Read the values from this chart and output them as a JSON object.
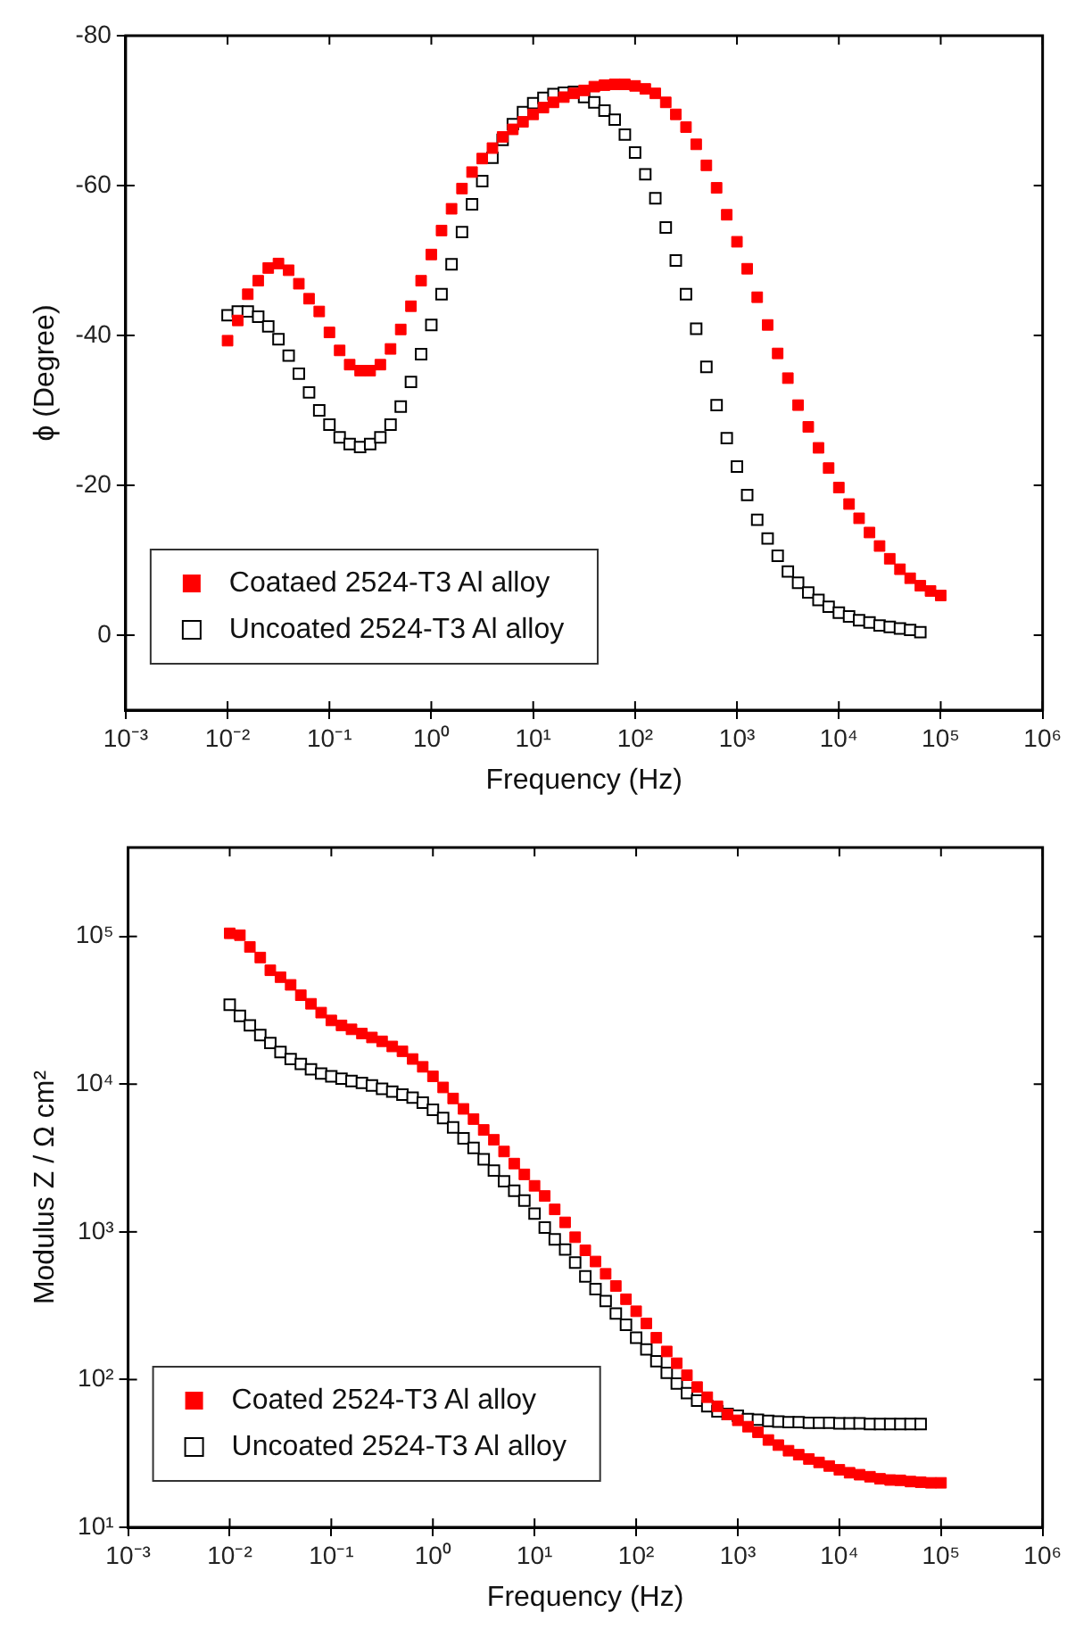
{
  "chart_data": [
    {
      "type": "scatter",
      "xlabel": "Frequency (Hz)",
      "ylabel": "ϕ (Degree)",
      "log": "x",
      "marker": "square",
      "legend": "bottom left",
      "grid": false,
      "xlim": [
        0.001,
        1000000
      ],
      "xticks": [
        {
          "value": 0.001,
          "label": "10⁻³"
        },
        {
          "value": 0.01,
          "label": "10⁻²"
        },
        {
          "value": 0.1,
          "label": "10⁻¹"
        },
        {
          "value": 1,
          "label": "10⁰"
        },
        {
          "value": 10,
          "label": "10¹"
        },
        {
          "value": 100,
          "label": "10²"
        },
        {
          "value": 1000,
          "label": "10³"
        },
        {
          "value": 10000,
          "label": "10⁴"
        },
        {
          "value": 100000,
          "label": "10⁵"
        },
        {
          "value": 1000000,
          "label": "10⁶"
        }
      ],
      "ylim": [
        10,
        -80
      ],
      "yticks": [
        -80,
        -60,
        -40,
        -20,
        0
      ],
      "series": [
        {
          "name": "Coataed 2524-T3 Al alloy",
          "color": "#ff0000",
          "x": [
            0.01,
            0.0126,
            0.0158,
            0.02,
            0.0251,
            0.0316,
            0.0398,
            0.0501,
            0.0631,
            0.0794,
            0.1,
            0.126,
            0.158,
            0.2,
            0.251,
            0.316,
            0.398,
            0.501,
            0.631,
            0.794,
            1,
            1.26,
            1.58,
            2,
            2.51,
            3.16,
            3.98,
            5.01,
            6.31,
            7.94,
            10,
            12.6,
            15.8,
            20,
            25.1,
            31.6,
            39.8,
            50.1,
            63.1,
            79.4,
            100,
            126,
            158,
            200,
            251,
            316,
            398,
            501,
            631,
            794,
            1000,
            1260,
            1580,
            2000,
            2510,
            3160,
            3980,
            5010,
            6310,
            7940,
            10000,
            12600,
            15800,
            20000,
            25100,
            31600,
            39800,
            50100,
            63100,
            79400,
            100000
          ],
          "values": [
            -39.3,
            -42,
            -45.5,
            -47.3,
            -49,
            -49.6,
            -48.7,
            -46.9,
            -44.9,
            -43.2,
            -40.4,
            -38,
            -36.1,
            -35.3,
            -35.3,
            -36.1,
            -38.2,
            -40.8,
            -43.9,
            -47.3,
            -50.8,
            -54,
            -56.9,
            -59.6,
            -61.8,
            -63.6,
            -65,
            -66.5,
            -67.5,
            -68.5,
            -69.5,
            -70.4,
            -71.1,
            -71.8,
            -72.3,
            -72.7,
            -73.2,
            -73.4,
            -73.5,
            -73.5,
            -73.3,
            -72.9,
            -72.3,
            -71.1,
            -69.5,
            -67.8,
            -65.5,
            -62.7,
            -59.7,
            -56.1,
            -52.5,
            -48.9,
            -45.1,
            -41.4,
            -37.6,
            -34.3,
            -30.7,
            -27.8,
            -25,
            -22.3,
            -19.7,
            -17.5,
            -15.6,
            -13.7,
            -11.9,
            -10.2,
            -8.8,
            -7.6,
            -6.6,
            -5.9,
            -5.3
          ]
        },
        {
          "name": "Uncoated 2524-T3 Al alloy",
          "color": "#000000",
          "x": [
            0.01,
            0.0126,
            0.0158,
            0.02,
            0.0251,
            0.0316,
            0.0398,
            0.0501,
            0.0631,
            0.0794,
            0.1,
            0.126,
            0.158,
            0.2,
            0.251,
            0.316,
            0.398,
            0.501,
            0.631,
            0.794,
            1,
            1.26,
            1.58,
            2,
            2.51,
            3.16,
            3.98,
            5.01,
            6.31,
            7.94,
            10,
            12.6,
            15.8,
            20,
            25.1,
            31.6,
            39.8,
            50.1,
            63.1,
            79.4,
            100,
            126,
            158,
            200,
            251,
            316,
            398,
            501,
            631,
            794,
            1000,
            1260,
            1580,
            2000,
            2510,
            3160,
            3980,
            5010,
            6310,
            7940,
            10000,
            12600,
            15800,
            20000,
            25100,
            31600,
            39800,
            50100,
            63100
          ],
          "values": [
            -42.7,
            -43.2,
            -43.2,
            -42.5,
            -41.2,
            -39.5,
            -37.3,
            -34.9,
            -32.4,
            -30,
            -28.1,
            -26.4,
            -25.5,
            -25.1,
            -25.5,
            -26.4,
            -28.1,
            -30.5,
            -33.8,
            -37.5,
            -41.4,
            -45.5,
            -49.5,
            -53.8,
            -57.5,
            -60.6,
            -63.7,
            -66.1,
            -68.2,
            -69.8,
            -71,
            -71.7,
            -72.2,
            -72.4,
            -72.5,
            -71.8,
            -71.1,
            -70,
            -68.8,
            -66.8,
            -64.4,
            -61.5,
            -58.3,
            -54.4,
            -50,
            -45.5,
            -40.9,
            -35.8,
            -30.7,
            -26.3,
            -22.5,
            -18.7,
            -15.4,
            -12.9,
            -10.6,
            -8.5,
            -7,
            -5.7,
            -4.7,
            -3.8,
            -3,
            -2.5,
            -2,
            -1.7,
            -1.3,
            -1.1,
            -0.9,
            -0.7,
            -0.4
          ]
        }
      ]
    },
    {
      "type": "scatter",
      "xlabel": "Frequency (Hz)",
      "ylabel": "Modulus Z / Ω cm²",
      "log": "xy",
      "marker": "square",
      "legend": "bottom left",
      "grid": false,
      "xlim": [
        0.001,
        1000000
      ],
      "xticks": [
        {
          "value": 0.001,
          "label": "10⁻³"
        },
        {
          "value": 0.01,
          "label": "10⁻²"
        },
        {
          "value": 0.1,
          "label": "10⁻¹"
        },
        {
          "value": 1,
          "label": "10⁰"
        },
        {
          "value": 10,
          "label": "10¹"
        },
        {
          "value": 100,
          "label": "10²"
        },
        {
          "value": 1000,
          "label": "10³"
        },
        {
          "value": 10000,
          "label": "10⁴"
        },
        {
          "value": 100000,
          "label": "10⁵"
        },
        {
          "value": 1000000,
          "label": "10⁶"
        }
      ],
      "ylim": [
        10,
        400000
      ],
      "yticks": [
        {
          "value": 10,
          "label": "10¹"
        },
        {
          "value": 100,
          "label": "10²"
        },
        {
          "value": 1000,
          "label": "10³"
        },
        {
          "value": 10000,
          "label": "10⁴"
        },
        {
          "value": 100000,
          "label": "10⁵"
        }
      ],
      "series": [
        {
          "name": "Coated 2524-T3 Al alloy",
          "color": "#ff0000",
          "x": [
            0.01,
            0.0126,
            0.0158,
            0.02,
            0.0251,
            0.0316,
            0.0398,
            0.0501,
            0.0631,
            0.0794,
            0.1,
            0.126,
            0.158,
            0.2,
            0.251,
            0.316,
            0.398,
            0.501,
            0.631,
            0.794,
            1,
            1.26,
            1.58,
            2,
            2.51,
            3.16,
            3.98,
            5.01,
            6.31,
            7.94,
            10,
            12.6,
            15.8,
            20,
            25.1,
            31.6,
            39.8,
            50.1,
            63.1,
            79.4,
            100,
            126,
            158,
            200,
            251,
            316,
            398,
            501,
            631,
            794,
            1000,
            1260,
            1580,
            2000,
            2510,
            3160,
            3980,
            5010,
            6310,
            7940,
            10000,
            12600,
            15800,
            20000,
            25100,
            31600,
            39800,
            50100,
            63100,
            79400,
            100000
          ],
          "values": [
            105000,
            102000,
            85000,
            72000,
            59000,
            53000,
            47000,
            40000,
            35000,
            30500,
            27000,
            25000,
            23500,
            22000,
            20700,
            19500,
            18000,
            16700,
            14800,
            13100,
            11300,
            9500,
            8000,
            6800,
            5800,
            4900,
            4200,
            3500,
            2900,
            2450,
            2050,
            1750,
            1420,
            1160,
            920,
            750,
            630,
            520,
            430,
            350,
            290,
            240,
            192,
            155,
            129,
            107,
            89,
            76,
            66,
            58,
            53,
            48,
            44,
            39,
            36,
            33,
            31,
            29,
            27.5,
            26,
            24.5,
            23.4,
            22.7,
            22,
            21.3,
            20.9,
            20.8,
            20.4,
            20.2,
            20,
            20
          ]
        },
        {
          "name": "Uncoated 2524-T3 Al alloy",
          "color": "#000000",
          "x": [
            0.01,
            0.0126,
            0.0158,
            0.02,
            0.0251,
            0.0316,
            0.0398,
            0.0501,
            0.0631,
            0.0794,
            0.1,
            0.126,
            0.158,
            0.2,
            0.251,
            0.316,
            0.398,
            0.501,
            0.631,
            0.794,
            1,
            1.26,
            1.58,
            2,
            2.51,
            3.16,
            3.98,
            5.01,
            6.31,
            7.94,
            10,
            12.6,
            15.8,
            20,
            25.1,
            31.6,
            39.8,
            50.1,
            63.1,
            79.4,
            100,
            126,
            158,
            200,
            251,
            316,
            398,
            501,
            631,
            794,
            1000,
            1260,
            1580,
            2000,
            2510,
            3160,
            3980,
            5010,
            6310,
            7940,
            10000,
            12600,
            15800,
            20000,
            25100,
            31600,
            39800,
            50100,
            63100
          ],
          "values": [
            34500,
            29000,
            25000,
            21500,
            19000,
            16500,
            14800,
            13700,
            12600,
            11800,
            11300,
            10900,
            10500,
            10200,
            9800,
            9300,
            8900,
            8500,
            8100,
            7500,
            6700,
            5900,
            5100,
            4300,
            3700,
            3100,
            2600,
            2200,
            1900,
            1630,
            1330,
            1070,
            890,
            760,
            620,
            500,
            410,
            340,
            280,
            235,
            192,
            160,
            133,
            111,
            94,
            81,
            72,
            66,
            61,
            58.5,
            57,
            54,
            53.5,
            52.5,
            52,
            51.5,
            51.5,
            51,
            51,
            51,
            50.5,
            50.5,
            50.5,
            50,
            50,
            50,
            50,
            50,
            50
          ]
        }
      ]
    }
  ]
}
